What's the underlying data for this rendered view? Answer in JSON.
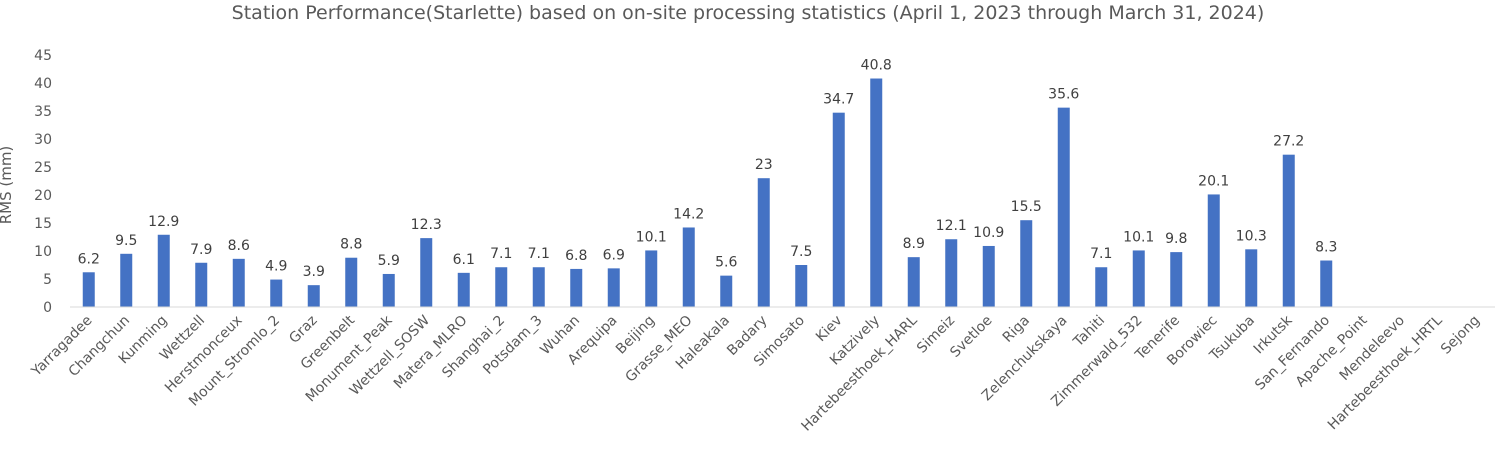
{
  "chart_data": {
    "type": "bar",
    "title": "Station Performance(Starlette) based on on-site processing statistics (April 1, 2023 through March 31, 2024)",
    "ylabel": "RMS (mm)",
    "xlabel": "",
    "ylim": [
      0,
      45
    ],
    "yticks": [
      0,
      5,
      10,
      15,
      20,
      25,
      30,
      35,
      40,
      45
    ],
    "grid": false,
    "bar_color": "#4472C4",
    "categories": [
      "Yarragadee",
      "Changchun",
      "Kunming",
      "Wettzell",
      "Herstmonceux",
      "Mount_Stromlo_2",
      "Graz",
      "Greenbelt",
      "Monument_Peak",
      "Wettzell_SOSW",
      "Matera_MLRO",
      "Shanghai_2",
      "Potsdam_3",
      "Wuhan",
      "Arequipa",
      "Beijing",
      "Grasse_MEO",
      "Haleakala",
      "Badary",
      "Simosato",
      "Kiev",
      "Katzively",
      "Hartebeesthoek_HARL",
      "Simeiz",
      "Svetloe",
      "Riga",
      "Zelenchukskaya",
      "Tahiti",
      "Zimmerwald_532",
      "Tenerife",
      "Borowiec",
      "Tsukuba",
      "Irkutsk",
      "San_Fernando",
      "Apache_Point",
      "Mendeleevo",
      "Hartebeesthoek_HRTL",
      "Sejong"
    ],
    "values": [
      6.2,
      9.5,
      12.9,
      7.9,
      8.6,
      4.9,
      3.9,
      8.8,
      5.9,
      12.3,
      6.1,
      7.1,
      7.1,
      6.8,
      6.9,
      10.1,
      14.2,
      5.6,
      23,
      7.5,
      34.7,
      40.8,
      8.9,
      12.1,
      10.9,
      15.5,
      35.6,
      7.1,
      10.1,
      9.8,
      20.1,
      10.3,
      27.2,
      8.3,
      null,
      null,
      null,
      null
    ]
  }
}
